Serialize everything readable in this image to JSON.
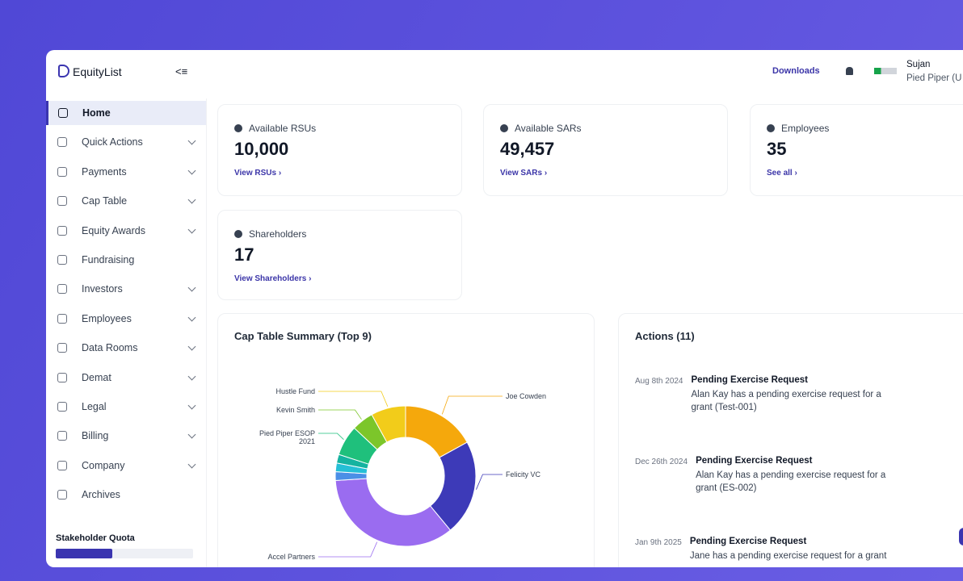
{
  "header": {
    "brand": "EquityList",
    "downloads": "Downloads",
    "user_name": "Sujan",
    "company": "Pied Piper (U"
  },
  "sidebar": {
    "items": [
      {
        "label": "Home",
        "active": true,
        "chevron": false
      },
      {
        "label": "Quick Actions",
        "active": false,
        "chevron": true
      },
      {
        "label": "Payments",
        "active": false,
        "chevron": true
      },
      {
        "label": "Cap Table",
        "active": false,
        "chevron": true
      },
      {
        "label": "Equity Awards",
        "active": false,
        "chevron": true
      },
      {
        "label": "Fundraising",
        "active": false,
        "chevron": false
      },
      {
        "label": "Investors",
        "active": false,
        "chevron": true
      },
      {
        "label": "Employees",
        "active": false,
        "chevron": true
      },
      {
        "label": "Data Rooms",
        "active": false,
        "chevron": true
      },
      {
        "label": "Demat",
        "active": false,
        "chevron": true
      },
      {
        "label": "Legal",
        "active": false,
        "chevron": true
      },
      {
        "label": "Billing",
        "active": false,
        "chevron": true
      },
      {
        "label": "Company",
        "active": false,
        "chevron": true
      },
      {
        "label": "Archives",
        "active": false,
        "chevron": false
      }
    ],
    "quota_label": "Stakeholder Quota"
  },
  "cards": [
    {
      "title": "Available RSUs",
      "value": "10,000",
      "link": "View RSUs"
    },
    {
      "title": "Available SARs",
      "value": "49,457",
      "link": "View SARs"
    },
    {
      "title": "Employees",
      "value": "35",
      "link": "See all"
    },
    {
      "title": "Shareholders",
      "value": "17",
      "link": "View Shareholders"
    }
  ],
  "actions": {
    "title": "Actions (11)",
    "items": [
      {
        "date": "Aug 8th 2024",
        "title": "Pending Exercise Request",
        "text": "Alan Kay has a pending exercise request for a grant (Test-001)"
      },
      {
        "date": "Dec 26th 2024",
        "title": "Pending Exercise Request",
        "text": "Alan Kay has a pending exercise request for a grant (ES-002)"
      },
      {
        "date": "Jan 9th 2025",
        "title": "Pending Exercise Request",
        "text": "Jane has a pending exercise request for a grant"
      }
    ]
  },
  "chart_data": {
    "type": "pie",
    "title": "Cap Table Summary (Top 9)",
    "categories": [
      "Joe Cowden",
      "Felicity VC",
      "Accel Partners",
      null,
      null,
      null,
      "Pied Piper ESOP 2021",
      "Kevin Smith",
      "Hustle Fund"
    ],
    "values": [
      17,
      22,
      35,
      2,
      2,
      2,
      7,
      5,
      8
    ],
    "colors": [
      "#f5a80c",
      "#3d3ab8",
      "#9a6cf0",
      "#4b8fe6",
      "#25bfd6",
      "#15b3a0",
      "#1fc07c",
      "#7cc62a",
      "#f2cc1a"
    ],
    "donut": true
  }
}
